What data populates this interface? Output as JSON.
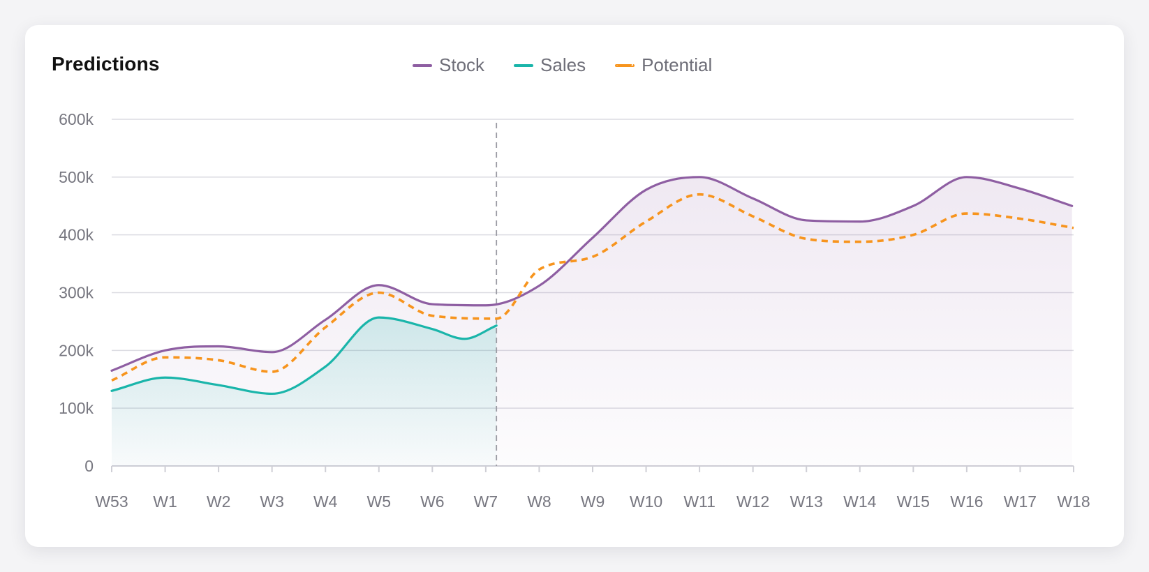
{
  "chart_data": {
    "type": "line",
    "title": "Predictions",
    "categories": [
      "W53",
      "W1",
      "W2",
      "W3",
      "W4",
      "W5",
      "W6",
      "W7",
      "W8",
      "W9",
      "W10",
      "W11",
      "W12",
      "W13",
      "W14",
      "W15",
      "W16",
      "W17",
      "W18"
    ],
    "ylim": [
      0,
      600000
    ],
    "yticks": [
      0,
      100000,
      200000,
      300000,
      400000,
      500000,
      600000
    ],
    "ytick_labels": [
      "0",
      "100k",
      "200k",
      "300k",
      "400k",
      "500k",
      "600k"
    ],
    "grid": true,
    "legend_position": "top-center",
    "divider_at_week": 7.2,
    "series": [
      {
        "name": "Stock",
        "color": "#8e5ea2",
        "style": "solid",
        "area": true,
        "x": [
          0,
          1,
          2,
          3,
          4,
          5,
          6,
          7,
          8,
          9,
          10,
          11,
          12,
          13,
          14,
          15,
          16,
          17,
          17.97
        ],
        "values": [
          165000,
          200000,
          207000,
          197000,
          253000,
          313000,
          280000,
          278000,
          312000,
          395000,
          478000,
          500000,
          463000,
          425000,
          423000,
          450000,
          500000,
          480000,
          450000
        ]
      },
      {
        "name": "Sales",
        "color": "#1ab5aa",
        "style": "solid",
        "area": true,
        "x": [
          0,
          1,
          2,
          3,
          4,
          5,
          6,
          6.6,
          7.2
        ],
        "values": [
          130000,
          153000,
          140000,
          125000,
          172000,
          257000,
          237000,
          220000,
          243000
        ]
      },
      {
        "name": "Potential",
        "color": "#f7941d",
        "style": "dashed",
        "area": false,
        "x": [
          0,
          1,
          2,
          3,
          4,
          5,
          6,
          7.2,
          8,
          9,
          10,
          11,
          12,
          13,
          14,
          15,
          16,
          17,
          18
        ],
        "values": [
          148000,
          188000,
          183000,
          163000,
          240000,
          300000,
          260000,
          255000,
          340000,
          362000,
          423000,
          470000,
          432000,
          393000,
          388000,
          400000,
          437000,
          428000,
          412000
        ]
      }
    ]
  }
}
